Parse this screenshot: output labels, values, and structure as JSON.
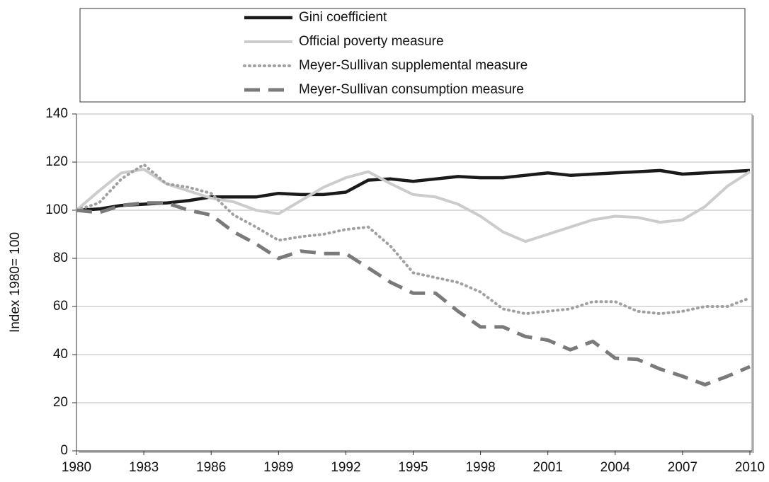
{
  "chart_data": {
    "type": "line",
    "y_label": "Index 1980= 100",
    "x": [
      1980,
      1981,
      1982,
      1983,
      1984,
      1985,
      1986,
      1987,
      1988,
      1989,
      1990,
      1991,
      1992,
      1993,
      1994,
      1995,
      1996,
      1997,
      1998,
      1999,
      2000,
      2001,
      2002,
      2003,
      2004,
      2005,
      2006,
      2007,
      2008,
      2009,
      2010
    ],
    "series": [
      {
        "name": "Gini coefficient",
        "color": "#1a1a1a",
        "style": "solid",
        "values": [
          100,
          100.5,
          102,
          102.5,
          103,
          104,
          105.5,
          105.5,
          105.5,
          107,
          106.5,
          106.5,
          107.5,
          112.5,
          113,
          112,
          113,
          114,
          113.5,
          113.5,
          114.5,
          115.5,
          114.5,
          115,
          115.5,
          116,
          116.5,
          115,
          115.5,
          116,
          116.5
        ]
      },
      {
        "name": "Official poverty measure",
        "color": "#cccccc",
        "style": "solid",
        "values": [
          100,
          108,
          115.5,
          117,
          111,
          108,
          105,
          103.5,
          100,
          98.5,
          104,
          109.5,
          113.5,
          116,
          111,
          106.5,
          105.5,
          102.5,
          97.5,
          91,
          87,
          90,
          93,
          96,
          97.5,
          97,
          95,
          96,
          101.5,
          110,
          116
        ]
      },
      {
        "name": "Meyer-Sullivan supplemental measure",
        "color": "#a0a0a0",
        "style": "dotted",
        "values": [
          100,
          103,
          113,
          119,
          111,
          109.5,
          107,
          98,
          93,
          87.5,
          89,
          90,
          92,
          93,
          85,
          74,
          72,
          70,
          66,
          59,
          57,
          58,
          59,
          62,
          62,
          58,
          57,
          58,
          60,
          60,
          63.5
        ]
      },
      {
        "name": "Meyer-Sullivan consumption measure",
        "color": "#7a7a7a",
        "style": "dashed",
        "values": [
          100,
          99,
          102,
          103,
          103,
          100,
          98,
          91,
          86,
          80,
          83,
          82,
          82,
          76,
          70,
          65.5,
          65.5,
          58,
          51.5,
          51.5,
          47.5,
          46,
          42,
          45.5,
          38.5,
          38,
          34,
          31,
          27.5,
          31,
          35
        ]
      }
    ],
    "xlim": [
      1980,
      2010
    ],
    "xticks": [
      1980,
      1983,
      1986,
      1989,
      1992,
      1995,
      1998,
      2001,
      2004,
      2007,
      2010
    ],
    "ylim": [
      0,
      140
    ],
    "yticks": [
      0,
      20,
      40,
      60,
      80,
      100,
      120,
      140
    ],
    "grid": true,
    "legend": "top"
  }
}
